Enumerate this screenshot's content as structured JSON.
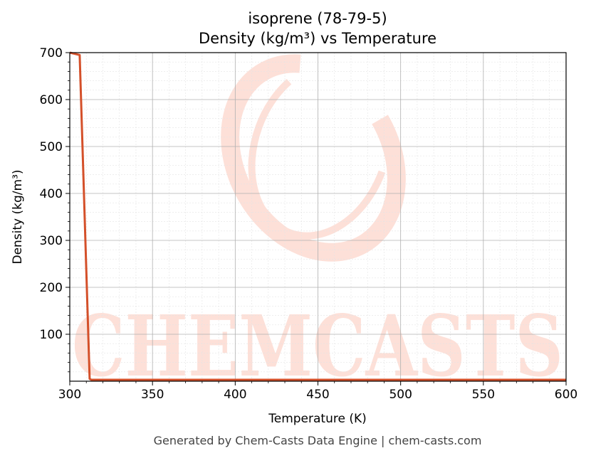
{
  "chart_data": {
    "type": "line",
    "title_line1": "isoprene (78-79-5)",
    "title_line2": "Density (kg/m³) vs Temperature",
    "xlabel": "Temperature (K)",
    "ylabel": "Density (kg/m³)",
    "xlim": [
      300,
      600
    ],
    "ylim": [
      0,
      700
    ],
    "x_ticks": [
      300,
      350,
      400,
      450,
      500,
      550,
      600
    ],
    "y_ticks": [
      100,
      200,
      300,
      400,
      500,
      600,
      700
    ],
    "grid": true,
    "minor_grid": true,
    "line_color": "#d4502a",
    "series": [
      {
        "x": [
          300,
          306,
          312,
          313,
          350,
          400,
          450,
          500,
          550,
          600
        ],
        "y": [
          700,
          695,
          5,
          3,
          3,
          3,
          3,
          3,
          3,
          3
        ]
      }
    ]
  },
  "watermark": {
    "text": "CHEMCASTS",
    "color": "#fde0d8"
  },
  "footer": "Generated by Chem-Casts Data Engine | chem-casts.com"
}
